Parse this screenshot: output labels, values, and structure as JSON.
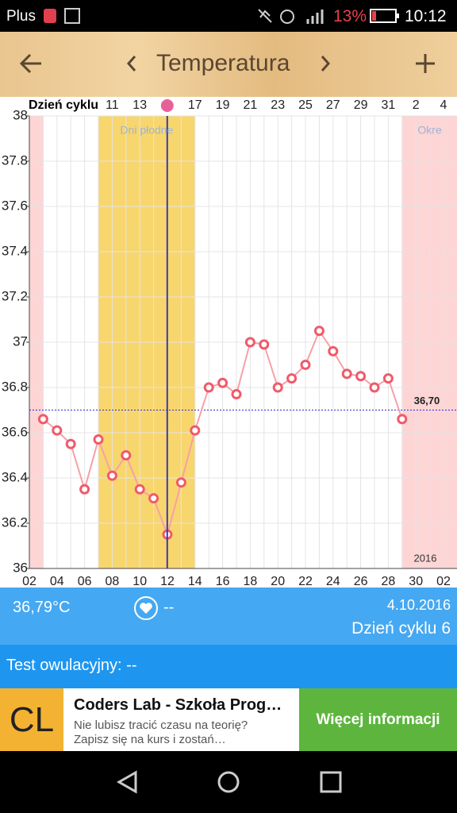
{
  "status_bar": {
    "carrier": "Plus",
    "battery": "13%",
    "time": "10:12"
  },
  "toolbar": {
    "title": "Temperatura"
  },
  "chart_data": {
    "type": "line",
    "cycle_day_label": "Dzień cyklu",
    "cycle_days": [
      null,
      null,
      null,
      null,
      null,
      null,
      11,
      null,
      13,
      null,
      null,
      null,
      17,
      null,
      19,
      null,
      21,
      null,
      23,
      null,
      25,
      null,
      27,
      null,
      29,
      null,
      31,
      null,
      2,
      null,
      4
    ],
    "categories": [
      "02",
      null,
      "04",
      null,
      "06",
      null,
      "08",
      null,
      "10",
      null,
      "12",
      null,
      "14",
      null,
      "16",
      null,
      "18",
      null,
      "20",
      null,
      "22",
      null,
      "24",
      null,
      "26",
      null,
      "28",
      null,
      "30",
      null,
      "02"
    ],
    "values": [
      null,
      36.66,
      36.61,
      36.55,
      36.35,
      36.57,
      36.41,
      36.5,
      36.35,
      36.31,
      36.15,
      36.38,
      36.61,
      36.8,
      36.82,
      36.77,
      37.0,
      36.99,
      36.8,
      36.84,
      36.9,
      37.05,
      36.96,
      36.86,
      36.85,
      36.8,
      36.84,
      36.66,
      null,
      null,
      null
    ],
    "color": "#f05a6a",
    "ylim": [
      36,
      38
    ],
    "yticks": [
      36,
      36.2,
      36.4,
      36.6,
      36.8,
      37,
      37.2,
      37.4,
      37.6,
      37.8,
      38
    ],
    "grid": true,
    "bands": [
      {
        "color": "#fdd5d5",
        "start": 0,
        "end": 1
      },
      {
        "label": "Dni płodne",
        "color": "#f8d66e",
        "start": 5,
        "end": 12
      },
      {
        "label": "Okre",
        "color": "#fdd5d5",
        "start": 27,
        "end": 31
      }
    ],
    "reference": {
      "value": 36.7,
      "label": "36,70"
    },
    "year": "2016"
  },
  "summary": {
    "temperature": "36,79°C",
    "heart": "--",
    "date": "4.10.2016",
    "cycle_day": "Dzień cyklu 6"
  },
  "ovulation_test": "Test owulacyjny: --",
  "ad": {
    "logo": "CL",
    "title": "Coders Lab - Szkoła Prog…",
    "line1": "Nie lubisz tracić czasu na teorię?",
    "line2": "Zapisz się na kurs i zostań…",
    "button": "Więcej informacji"
  }
}
